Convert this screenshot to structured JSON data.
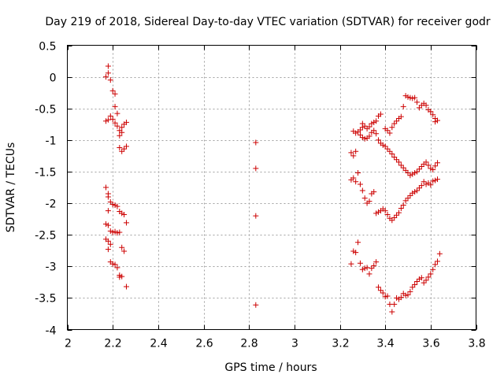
{
  "chart_data": {
    "type": "scatter",
    "title": "Day 219 of 2018, Sidereal Day-to-day VTEC variation (SDTVAR) for receiver godr",
    "xlabel": "GPS time / hours",
    "ylabel": "SDTVAR / TECUs",
    "xlim": [
      2,
      3.8
    ],
    "ylim": [
      -4,
      0.5
    ],
    "grid": true,
    "marker": "+",
    "color": "#cc0000",
    "x_ticks": [
      {
        "value": 2,
        "label": "2"
      },
      {
        "value": 2.2,
        "label": "2.2"
      },
      {
        "value": 2.4,
        "label": "2.4"
      },
      {
        "value": 2.6,
        "label": "2.6"
      },
      {
        "value": 2.8,
        "label": "2.8"
      },
      {
        "value": 3,
        "label": "3"
      },
      {
        "value": 3.2,
        "label": "3.2"
      },
      {
        "value": 3.4,
        "label": "3.4"
      },
      {
        "value": 3.6,
        "label": "3.6"
      },
      {
        "value": 3.8,
        "label": "3.8"
      }
    ],
    "y_ticks": [
      {
        "value": 0.5,
        "label": "0.5"
      },
      {
        "value": 0,
        "label": "0"
      },
      {
        "value": -0.5,
        "label": "-0.5"
      },
      {
        "value": -1,
        "label": "-1"
      },
      {
        "value": -1.5,
        "label": "-1.5"
      },
      {
        "value": -2,
        "label": "-2"
      },
      {
        "value": -2.5,
        "label": "-2.5"
      },
      {
        "value": -3,
        "label": "-3"
      },
      {
        "value": -3.5,
        "label": "-3.5"
      },
      {
        "value": -4,
        "label": "-4"
      }
    ],
    "series": [
      {
        "name": "SDTVAR",
        "points": [
          [
            2.17,
            0.0
          ],
          [
            2.18,
            0.17
          ],
          [
            2.18,
            0.06
          ],
          [
            2.19,
            -0.05
          ],
          [
            2.2,
            -0.22
          ],
          [
            2.21,
            -0.27
          ],
          [
            2.21,
            -0.47
          ],
          [
            2.22,
            -0.58
          ],
          [
            2.17,
            -0.7
          ],
          [
            2.18,
            -0.68
          ],
          [
            2.19,
            -0.62
          ],
          [
            2.2,
            -0.67
          ],
          [
            2.21,
            -0.73
          ],
          [
            2.22,
            -0.78
          ],
          [
            2.23,
            -0.85
          ],
          [
            2.23,
            -0.93
          ],
          [
            2.24,
            -0.88
          ],
          [
            2.24,
            -0.8
          ],
          [
            2.25,
            -0.75
          ],
          [
            2.26,
            -0.72
          ],
          [
            2.23,
            -1.12
          ],
          [
            2.24,
            -1.18
          ],
          [
            2.25,
            -1.14
          ],
          [
            2.26,
            -1.1
          ],
          [
            2.17,
            -1.75
          ],
          [
            2.18,
            -1.85
          ],
          [
            2.18,
            -1.9
          ],
          [
            2.19,
            -1.98
          ],
          [
            2.2,
            -2.02
          ],
          [
            2.21,
            -2.03
          ],
          [
            2.22,
            -2.05
          ],
          [
            2.23,
            -2.13
          ],
          [
            2.24,
            -2.16
          ],
          [
            2.25,
            -2.18
          ],
          [
            2.26,
            -2.31
          ],
          [
            2.18,
            -2.12
          ],
          [
            2.17,
            -2.33
          ],
          [
            2.18,
            -2.35
          ],
          [
            2.19,
            -2.44
          ],
          [
            2.2,
            -2.46
          ],
          [
            2.21,
            -2.45
          ],
          [
            2.22,
            -2.47
          ],
          [
            2.23,
            -2.46
          ],
          [
            2.17,
            -2.57
          ],
          [
            2.18,
            -2.6
          ],
          [
            2.19,
            -2.65
          ],
          [
            2.18,
            -2.73
          ],
          [
            2.24,
            -2.7
          ],
          [
            2.25,
            -2.76
          ],
          [
            2.19,
            -2.93
          ],
          [
            2.2,
            -2.96
          ],
          [
            2.21,
            -2.97
          ],
          [
            2.22,
            -3.02
          ],
          [
            2.23,
            -3.14
          ],
          [
            2.24,
            -3.16
          ],
          [
            2.23,
            -3.17
          ],
          [
            2.26,
            -3.32
          ],
          [
            2.83,
            -1.04
          ],
          [
            2.83,
            -1.45
          ],
          [
            2.83,
            -2.2
          ],
          [
            2.83,
            -3.61
          ],
          [
            3.26,
            -0.86
          ],
          [
            3.27,
            -0.89
          ],
          [
            3.28,
            -0.87
          ],
          [
            3.29,
            -0.84
          ],
          [
            3.3,
            -0.8
          ],
          [
            3.3,
            -0.74
          ],
          [
            3.31,
            -0.78
          ],
          [
            3.32,
            -0.82
          ],
          [
            3.33,
            -0.79
          ],
          [
            3.34,
            -0.74
          ],
          [
            3.35,
            -0.72
          ],
          [
            3.36,
            -0.7
          ],
          [
            3.37,
            -0.62
          ],
          [
            3.38,
            -0.59
          ],
          [
            3.29,
            -0.92
          ],
          [
            3.3,
            -0.96
          ],
          [
            3.31,
            -0.98
          ],
          [
            3.32,
            -0.97
          ],
          [
            3.33,
            -0.94
          ],
          [
            3.34,
            -0.88
          ],
          [
            3.35,
            -0.85
          ],
          [
            3.36,
            -0.9
          ],
          [
            3.37,
            -1.0
          ],
          [
            3.38,
            -1.05
          ],
          [
            3.39,
            -1.08
          ],
          [
            3.4,
            -1.1
          ],
          [
            3.41,
            -1.14
          ],
          [
            3.42,
            -1.18
          ],
          [
            3.43,
            -1.22
          ],
          [
            3.44,
            -1.27
          ],
          [
            3.45,
            -1.31
          ],
          [
            3.46,
            -1.35
          ],
          [
            3.47,
            -1.4
          ],
          [
            3.48,
            -1.44
          ],
          [
            3.4,
            -0.82
          ],
          [
            3.41,
            -0.85
          ],
          [
            3.42,
            -0.89
          ],
          [
            3.43,
            -0.8
          ],
          [
            3.44,
            -0.74
          ],
          [
            3.45,
            -0.7
          ],
          [
            3.46,
            -0.66
          ],
          [
            3.47,
            -0.63
          ],
          [
            3.48,
            -0.47
          ],
          [
            3.49,
            -0.3
          ],
          [
            3.5,
            -0.32
          ],
          [
            3.51,
            -0.33
          ],
          [
            3.52,
            -0.34
          ],
          [
            3.53,
            -0.33
          ],
          [
            3.54,
            -0.4
          ],
          [
            3.55,
            -0.49
          ],
          [
            3.56,
            -0.45
          ],
          [
            3.57,
            -0.42
          ],
          [
            3.58,
            -0.45
          ],
          [
            3.59,
            -0.52
          ],
          [
            3.6,
            -0.55
          ],
          [
            3.61,
            -0.6
          ],
          [
            3.62,
            -0.66
          ],
          [
            3.63,
            -0.69
          ],
          [
            3.62,
            -0.71
          ],
          [
            3.25,
            -1.2
          ],
          [
            3.26,
            -1.25
          ],
          [
            3.27,
            -1.18
          ],
          [
            3.25,
            -1.63
          ],
          [
            3.26,
            -1.6
          ],
          [
            3.27,
            -1.66
          ],
          [
            3.28,
            -1.52
          ],
          [
            3.29,
            -1.7
          ],
          [
            3.3,
            -1.8
          ],
          [
            3.31,
            -1.92
          ],
          [
            3.32,
            -2.0
          ],
          [
            3.33,
            -1.97
          ],
          [
            3.34,
            -1.85
          ],
          [
            3.35,
            -1.82
          ],
          [
            3.36,
            -2.16
          ],
          [
            3.37,
            -2.14
          ],
          [
            3.38,
            -2.12
          ],
          [
            3.39,
            -2.09
          ],
          [
            3.4,
            -2.12
          ],
          [
            3.41,
            -2.18
          ],
          [
            3.42,
            -2.24
          ],
          [
            3.43,
            -2.27
          ],
          [
            3.44,
            -2.23
          ],
          [
            3.45,
            -2.19
          ],
          [
            3.46,
            -2.15
          ],
          [
            3.47,
            -2.08
          ],
          [
            3.48,
            -2.03
          ],
          [
            3.49,
            -1.96
          ],
          [
            3.5,
            -1.92
          ],
          [
            3.51,
            -1.88
          ],
          [
            3.52,
            -1.84
          ],
          [
            3.53,
            -1.82
          ],
          [
            3.54,
            -1.8
          ],
          [
            3.55,
            -1.76
          ],
          [
            3.56,
            -1.72
          ],
          [
            3.57,
            -1.66
          ],
          [
            3.58,
            -1.7
          ],
          [
            3.59,
            -1.68
          ],
          [
            3.6,
            -1.71
          ],
          [
            3.61,
            -1.65
          ],
          [
            3.62,
            -1.64
          ],
          [
            3.63,
            -1.62
          ],
          [
            3.49,
            -1.48
          ],
          [
            3.5,
            -1.52
          ],
          [
            3.51,
            -1.56
          ],
          [
            3.52,
            -1.54
          ],
          [
            3.53,
            -1.52
          ],
          [
            3.54,
            -1.5
          ],
          [
            3.55,
            -1.46
          ],
          [
            3.56,
            -1.42
          ],
          [
            3.57,
            -1.38
          ],
          [
            3.58,
            -1.35
          ],
          [
            3.59,
            -1.4
          ],
          [
            3.6,
            -1.45
          ],
          [
            3.61,
            -1.47
          ],
          [
            3.62,
            -1.41
          ],
          [
            3.63,
            -1.36
          ],
          [
            3.25,
            -2.96
          ],
          [
            3.26,
            -2.76
          ],
          [
            3.27,
            -2.78
          ],
          [
            3.28,
            -2.62
          ],
          [
            3.29,
            -2.95
          ],
          [
            3.3,
            -3.05
          ],
          [
            3.31,
            -3.03
          ],
          [
            3.32,
            -3.02
          ],
          [
            3.33,
            -3.12
          ],
          [
            3.34,
            -3.03
          ],
          [
            3.35,
            -2.99
          ],
          [
            3.36,
            -2.93
          ],
          [
            3.37,
            -3.33
          ],
          [
            3.38,
            -3.38
          ],
          [
            3.39,
            -3.42
          ],
          [
            3.4,
            -3.48
          ],
          [
            3.41,
            -3.47
          ],
          [
            3.42,
            -3.6
          ],
          [
            3.43,
            -3.72
          ],
          [
            3.44,
            -3.6
          ],
          [
            3.45,
            -3.5
          ],
          [
            3.46,
            -3.52
          ],
          [
            3.47,
            -3.49
          ],
          [
            3.48,
            -3.43
          ],
          [
            3.49,
            -3.46
          ],
          [
            3.5,
            -3.45
          ],
          [
            3.51,
            -3.4
          ],
          [
            3.52,
            -3.33
          ],
          [
            3.53,
            -3.29
          ],
          [
            3.54,
            -3.24
          ],
          [
            3.55,
            -3.2
          ],
          [
            3.56,
            -3.18
          ],
          [
            3.57,
            -3.26
          ],
          [
            3.58,
            -3.22
          ],
          [
            3.59,
            -3.17
          ],
          [
            3.6,
            -3.12
          ],
          [
            3.61,
            -3.05
          ],
          [
            3.62,
            -2.97
          ],
          [
            3.63,
            -2.92
          ],
          [
            3.64,
            -2.8
          ]
        ]
      }
    ]
  }
}
